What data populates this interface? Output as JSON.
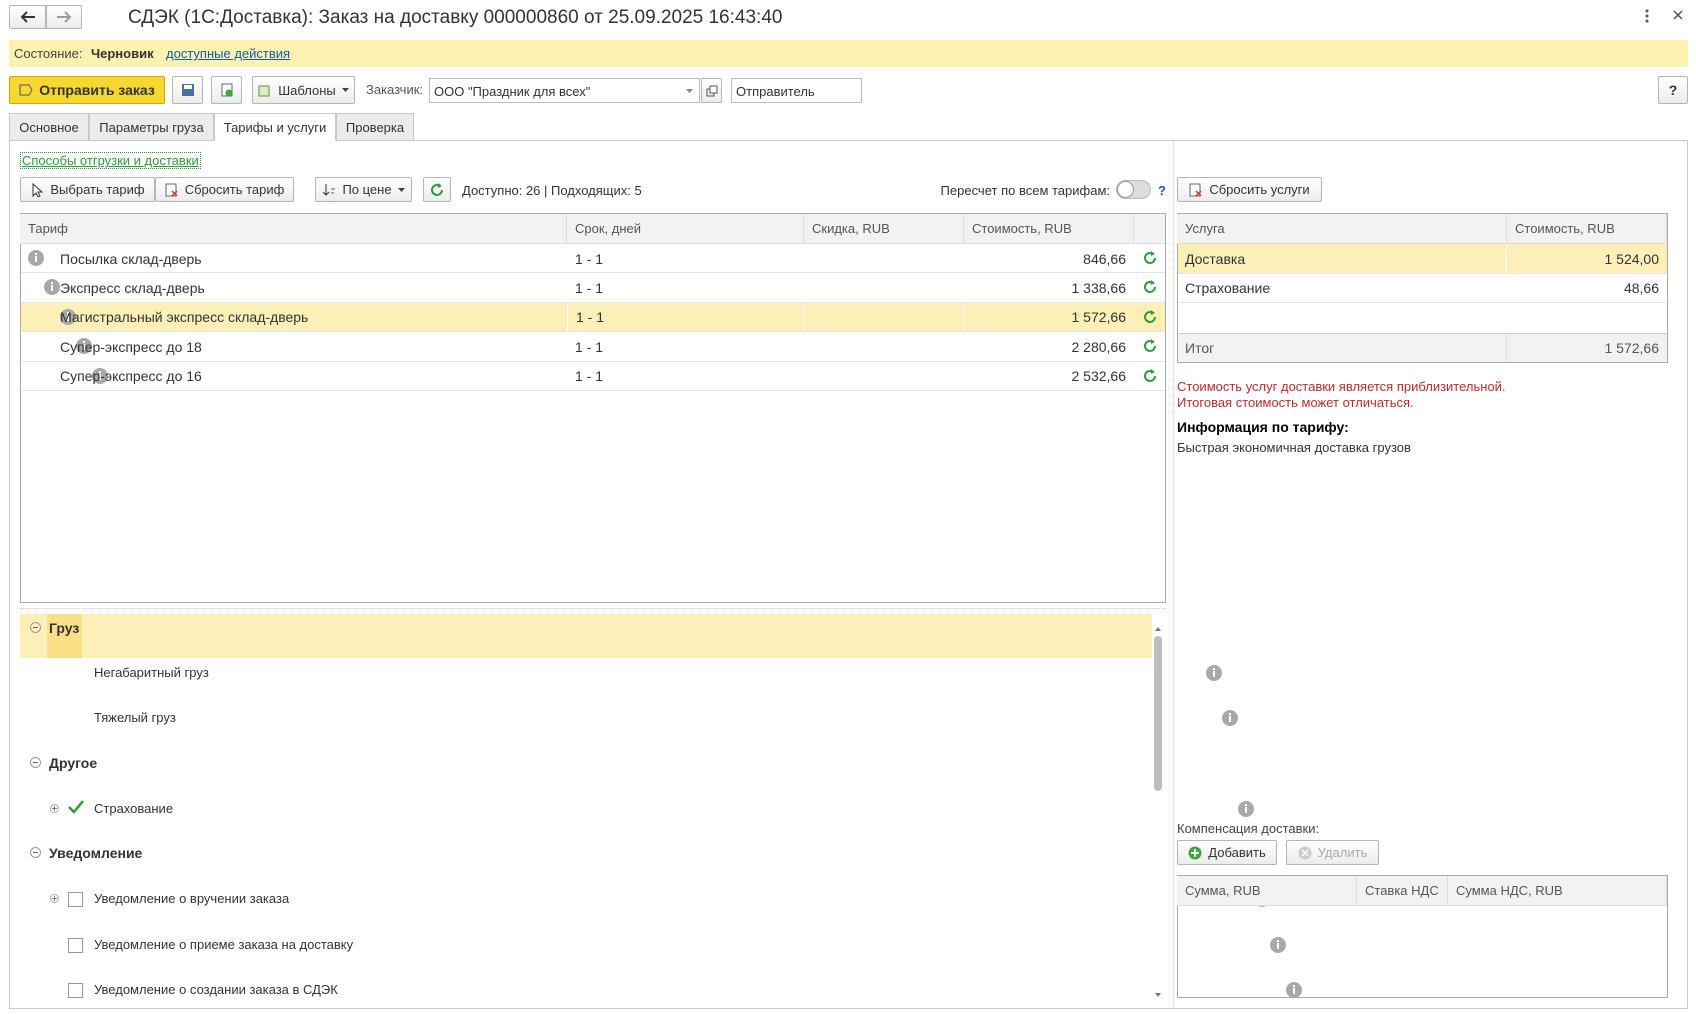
{
  "header": {
    "title": "СДЭК (1С:Доставка): Заказ на доставку 000000860 от 25.09.2025 16:43:40"
  },
  "status": {
    "label": "Состояние:",
    "value": "Черновик",
    "link": "доступные действия"
  },
  "toolbar": {
    "send": "Отправить заказ",
    "templates": "Шаблоны",
    "customer_label": "Заказчик:",
    "customer": "ООО \"Праздник для всех\"",
    "sender": "Отправитель",
    "help": "?"
  },
  "tabs": [
    "Основное",
    "Параметры груза",
    "Тарифы и услуги",
    "Проверка"
  ],
  "link": "Способы отгрузки и доставки",
  "tariff_toolbar": {
    "choose": "Выбрать тариф",
    "reset": "Сбросить тариф",
    "sort": "По цене",
    "available": "Доступно: 26 | Подходящих: 5",
    "recalc": "Пересчет по всем тарифам:",
    "recalc_help": "?",
    "reset_services": "Сбросить услуги"
  },
  "tariffs": {
    "columns": [
      "Тариф",
      "Срок, дней",
      "Скидка, RUB",
      "Стоимость, RUB"
    ],
    "rows": [
      {
        "name": "Посылка склад-дверь",
        "term": "1 - 1",
        "cost": "846,66"
      },
      {
        "name": "Экспресс склад-дверь",
        "term": "1 - 1",
        "cost": "1 338,66"
      },
      {
        "name": "Магистральный экспресс склад-дверь",
        "term": "1 - 1",
        "cost": "1 572,66"
      },
      {
        "name": "Супер-экспресс до 18",
        "term": "1 - 1",
        "cost": "2 280,66"
      },
      {
        "name": "Супер-экспресс до 16",
        "term": "1 - 1",
        "cost": "2 532,66"
      }
    ]
  },
  "services": {
    "columns": [
      "Услуга",
      "Стоимость, RUB"
    ],
    "rows": [
      [
        "Доставка",
        "1 524,00"
      ],
      [
        "Страхование",
        "48,66"
      ]
    ],
    "total": [
      "Итог",
      "1 572,66"
    ]
  },
  "notes": {
    "warning": [
      "Стоимость услуг доставки является приблизительной.",
      "Итоговая стоимость может отличаться."
    ],
    "info_title": "Информация по тарифу:",
    "info": "Быстрая экономичная доставка грузов"
  },
  "options": [
    {
      "title": "Груз",
      "items": [
        {
          "label": "Негабаритный груз"
        },
        {
          "label": "Тяжелый груз"
        }
      ]
    },
    {
      "title": "Другое",
      "items": [
        {
          "label": "Страхование"
        }
      ]
    },
    {
      "title": "Уведомление",
      "items": [
        {
          "label": "Уведомление о вручении заказа"
        },
        {
          "label": "Уведомление о приеме заказа на доставку"
        },
        {
          "label": "Уведомление о создании заказа в СДЭК"
        }
      ]
    }
  ],
  "compensation": {
    "title": "Компенсация доставки:",
    "add": "Добавить",
    "delete": "Удалить",
    "columns": [
      "Сумма, RUB",
      "Ставка НДС",
      "Сумма НДС, RUB"
    ]
  }
}
